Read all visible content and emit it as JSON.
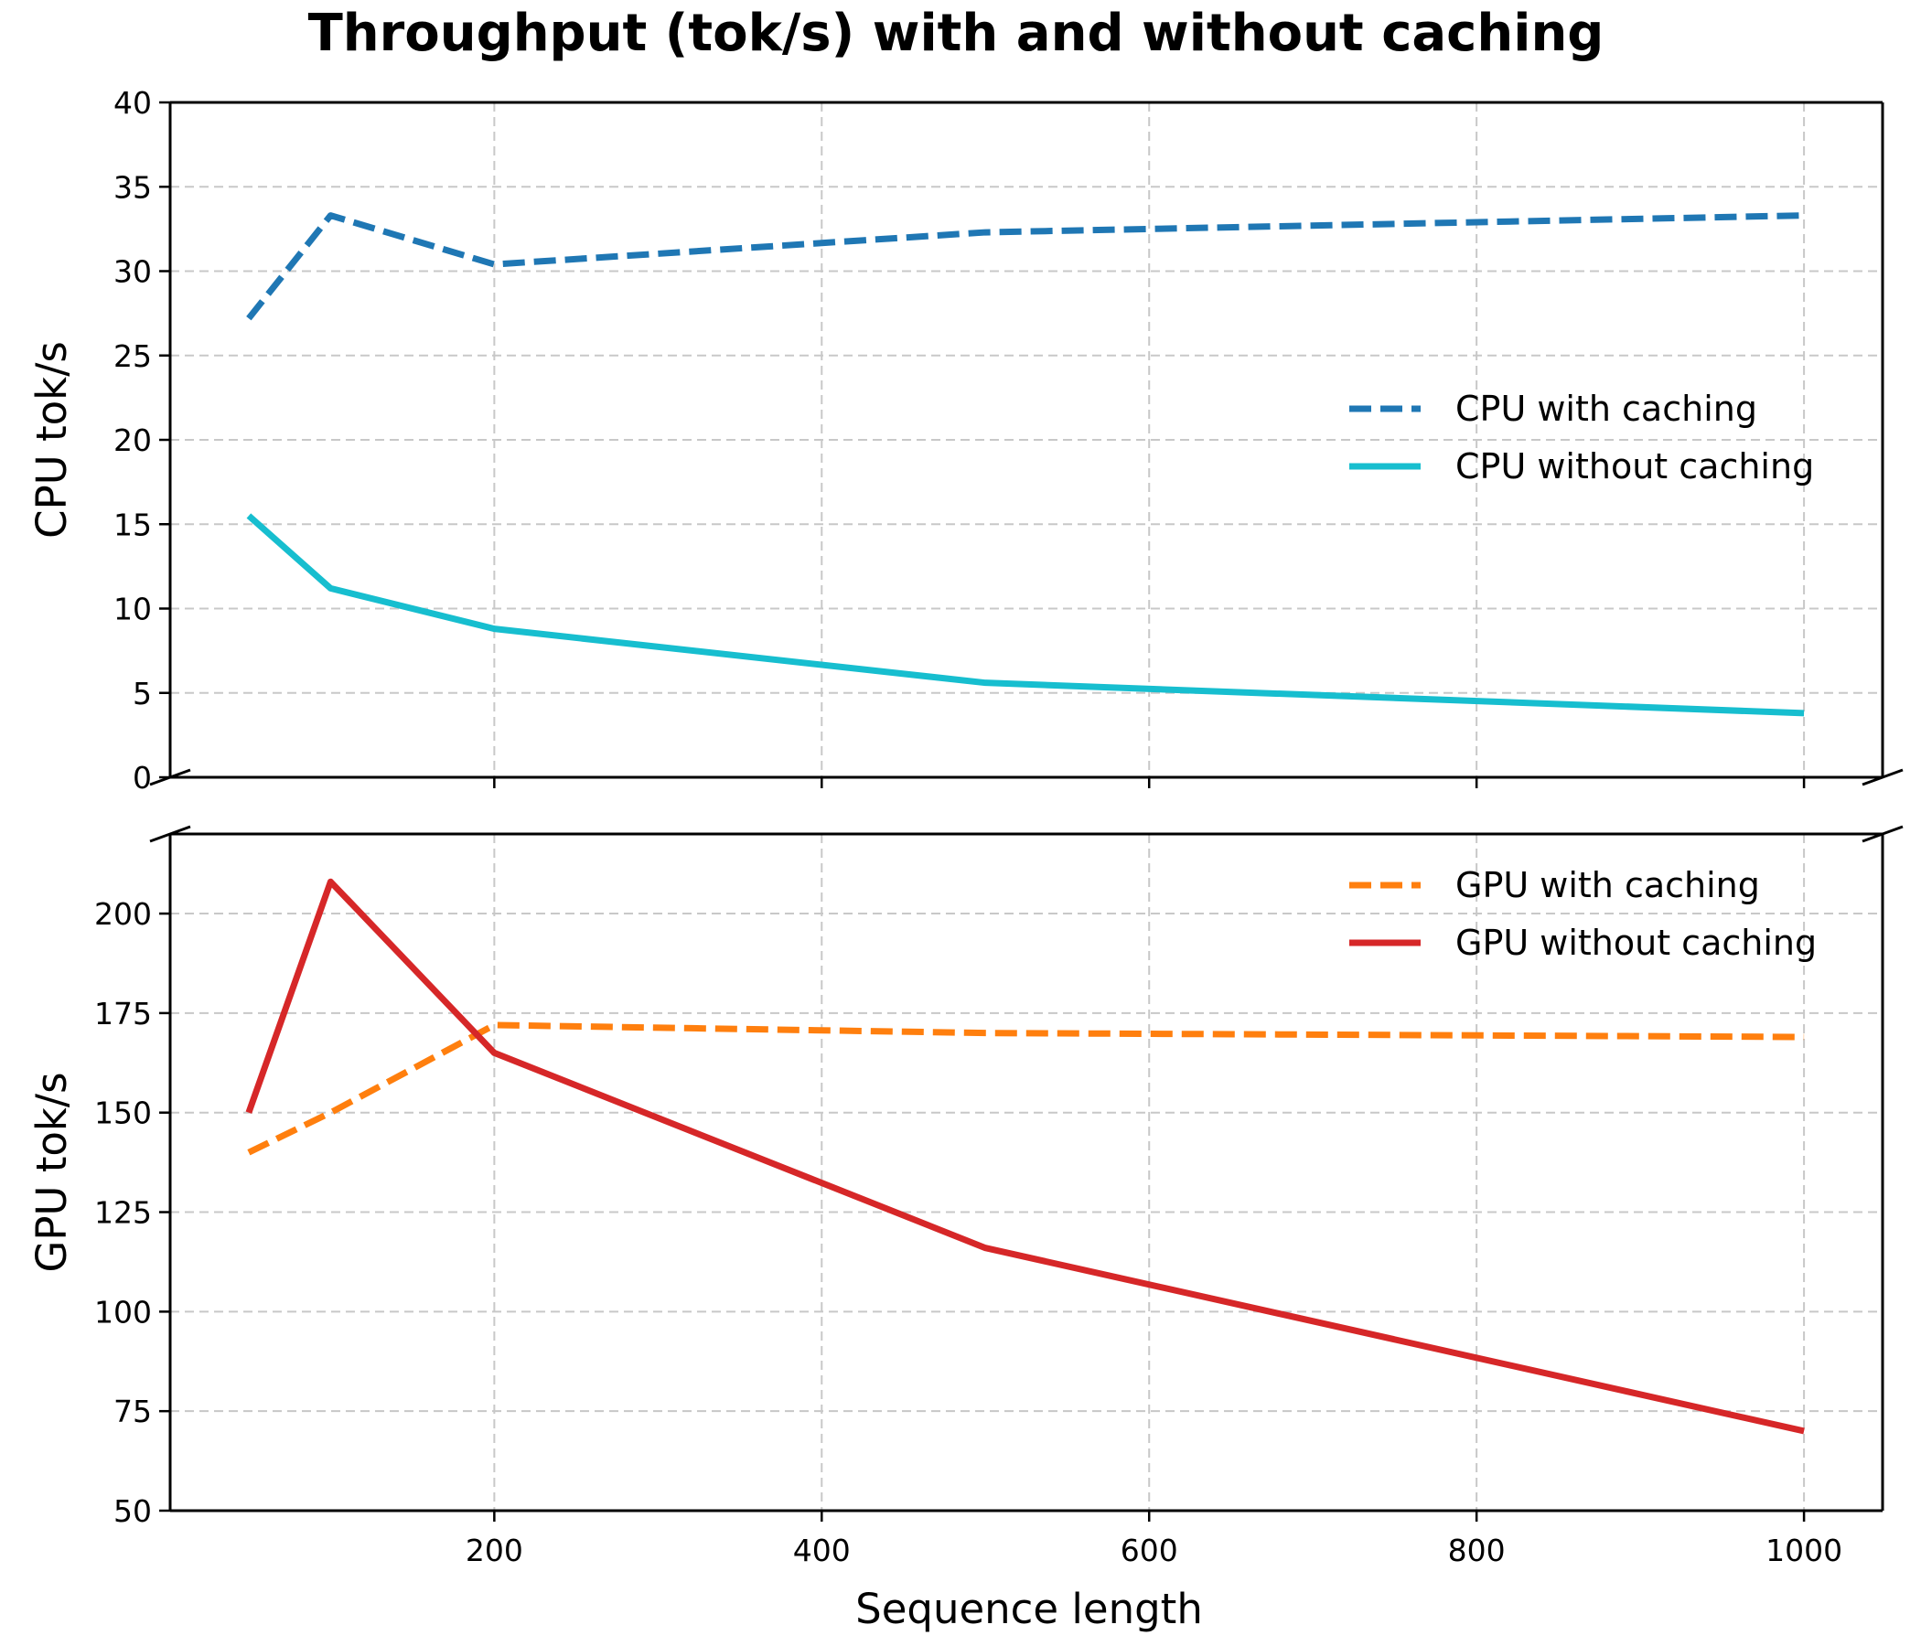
{
  "chart_data": {
    "type": "line",
    "title": "Throughput (tok/s) with and without caching",
    "xlabel": "Sequence length",
    "grid": true,
    "x": [
      50,
      100,
      200,
      500,
      1000
    ],
    "xticks": [
      200,
      400,
      600,
      800,
      1000
    ],
    "xlim": [
      2,
      1048
    ],
    "panels": [
      {
        "ylabel": "CPU tok/s",
        "ylim": [
          0,
          40
        ],
        "yticks": [
          0,
          5,
          10,
          15,
          20,
          25,
          30,
          35,
          40
        ],
        "legend_position": "center-right",
        "series": [
          {
            "name": "CPU with caching",
            "values": [
              27.2,
              33.3,
              30.4,
              32.3,
              33.3
            ],
            "color": "#1f77b4",
            "style": "dashed"
          },
          {
            "name": "CPU without caching",
            "values": [
              15.5,
              11.2,
              8.8,
              5.6,
              3.8
            ],
            "color": "#17becf",
            "style": "solid"
          }
        ]
      },
      {
        "ylabel": "GPU tok/s",
        "ylim": [
          50,
          220
        ],
        "yticks": [
          50,
          75,
          100,
          125,
          150,
          175,
          200
        ],
        "legend_position": "top-right",
        "series": [
          {
            "name": "GPU with caching",
            "values": [
              140,
              150,
              172,
              170,
              169
            ],
            "color": "#ff7f0e",
            "style": "dashed"
          },
          {
            "name": "GPU without caching",
            "values": [
              150,
              208,
              165,
              116,
              70
            ],
            "color": "#d62728",
            "style": "solid"
          }
        ]
      }
    ]
  }
}
